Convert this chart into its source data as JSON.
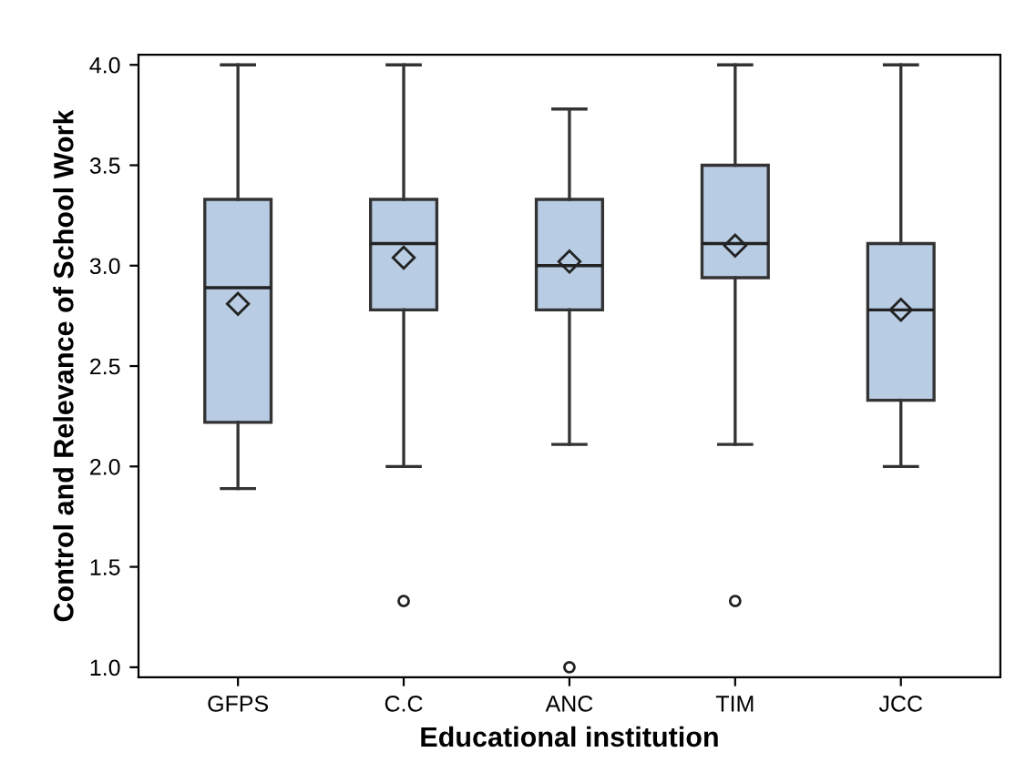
{
  "chart_data": {
    "type": "box",
    "xlabel": "Educational institution",
    "ylabel": "Control and Relevance of School Work",
    "categories": [
      "GFPS",
      "C.C",
      "ANC",
      "TIM",
      "JCC"
    ],
    "color": "#b8cce4",
    "boxes": [
      {
        "low": 1.89,
        "q1": 2.22,
        "median": 2.89,
        "q3": 3.33,
        "high": 4.0,
        "mean": 2.81
      },
      {
        "low": 2.0,
        "q1": 2.78,
        "median": 3.11,
        "q3": 3.33,
        "high": 4.0,
        "mean": 3.04,
        "outliers": [
          1.33
        ]
      },
      {
        "low": 2.11,
        "q1": 2.78,
        "median": 3.0,
        "q3": 3.33,
        "high": 3.78,
        "mean": 3.02,
        "outliers": [
          1.0
        ]
      },
      {
        "low": 2.11,
        "q1": 2.94,
        "median": 3.11,
        "q3": 3.5,
        "high": 4.0,
        "mean": 3.1,
        "outliers": [
          1.33
        ]
      },
      {
        "low": 2.0,
        "q1": 2.33,
        "median": 2.78,
        "q3": 3.11,
        "high": 4.0,
        "mean": 2.78
      }
    ],
    "ylim": [
      0.95,
      4.05
    ],
    "yticks": [
      {
        "value": 1,
        "label": "1.0"
      },
      1.5,
      {
        "value": 2,
        "label": "2.0"
      },
      2.5,
      {
        "value": 3,
        "label": "3.0"
      },
      3.5,
      {
        "value": 4,
        "label": "4.0"
      }
    ],
    "grid": false,
    "legend": false
  }
}
